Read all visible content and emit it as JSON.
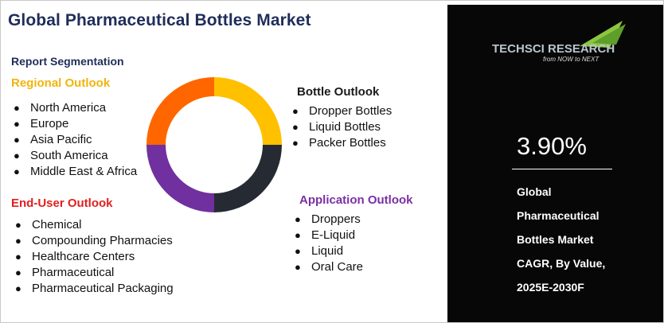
{
  "title": "Global Pharmaceutical Bottles Market",
  "segmentation_label": "Report Segmentation",
  "regional": {
    "heading": "Regional Outlook",
    "items": [
      "North America",
      "Europe",
      "Asia Pacific",
      "South America",
      "Middle East & Africa"
    ]
  },
  "end_user": {
    "heading": "End-User Outlook",
    "items": [
      "Chemical",
      "Compounding Pharmacies",
      "Healthcare Centers",
      "Pharmaceutical",
      "Pharmaceutical Packaging"
    ]
  },
  "bottle": {
    "heading": "Bottle Outlook",
    "items": [
      "Dropper Bottles",
      "Liquid Bottles",
      "Packer Bottles"
    ]
  },
  "application": {
    "heading": "Application Outlook",
    "items": [
      "Droppers",
      "E-Liquid",
      "Liquid",
      "Oral Care"
    ]
  },
  "donut": {
    "segments": [
      {
        "name": "regional",
        "color": "#ffc000"
      },
      {
        "name": "bottle",
        "color": "#262b33"
      },
      {
        "name": "application",
        "color": "#7030a0"
      },
      {
        "name": "end_user",
        "color": "#ff6600"
      }
    ]
  },
  "logo": {
    "brand": "TechSci Research",
    "tagline": "from NOW to NEXT"
  },
  "cagr": {
    "value": "3.90%",
    "description": [
      "Global",
      "Pharmaceutical",
      "Bottles Market",
      "CAGR, By Value,",
      "2025E-2030F"
    ]
  },
  "colors": {
    "title": "#1f2d5a",
    "regional": "#f2b40c",
    "end_user": "#e02020",
    "application": "#7a2fa5",
    "panel_bg": "#070707"
  }
}
